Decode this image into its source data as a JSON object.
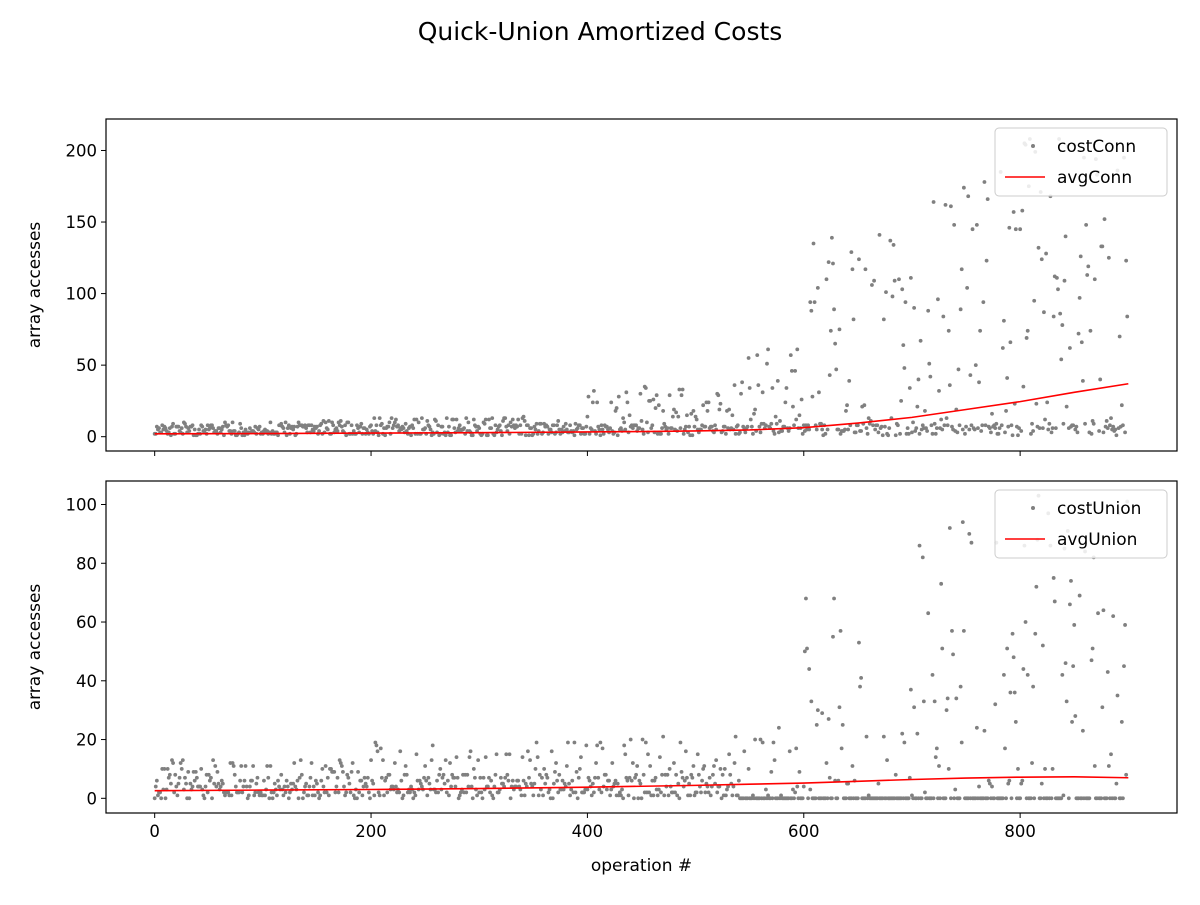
{
  "figure": {
    "title": "Quick-Union Amortized Costs"
  },
  "chart_data": [
    {
      "type": "scatter",
      "title": "",
      "xlabel": "",
      "ylabel": "array accesses",
      "xlim": [
        -45,
        945
      ],
      "ylim": [
        -10,
        222
      ],
      "xticks": [
        0,
        200,
        400,
        600,
        800
      ],
      "yticks": [
        0,
        50,
        100,
        150,
        200
      ],
      "show_x_tick_labels": false,
      "grid": false,
      "legend": {
        "placement": "upper right",
        "entries": [
          "costConn",
          "avgConn"
        ]
      },
      "scatter_series": {
        "name": "costConn",
        "color": "#808080",
        "n_points": 900,
        "approx_profile": [
          {
            "x_from": 0,
            "x_to": 200,
            "min": 1,
            "max": 11
          },
          {
            "x_from": 200,
            "x_to": 400,
            "min": 1,
            "max": 14
          },
          {
            "x_from": 400,
            "x_to": 540,
            "min": 1,
            "max": 36
          },
          {
            "x_from": 540,
            "x_to": 600,
            "min": 1,
            "max": 62
          },
          {
            "x_from": 600,
            "x_to": 700,
            "min": 1,
            "max": 156
          },
          {
            "x_from": 700,
            "x_to": 800,
            "min": 1,
            "max": 190
          },
          {
            "x_from": 800,
            "x_to": 900,
            "min": 1,
            "max": 212
          }
        ]
      },
      "line_series": {
        "name": "avgConn",
        "color": "#ff0000",
        "x": [
          0,
          100,
          200,
          300,
          400,
          450,
          500,
          550,
          600,
          650,
          700,
          750,
          800,
          850,
          900
        ],
        "y": [
          2,
          2.2,
          2.5,
          2.8,
          3.3,
          3.6,
          4.0,
          4.7,
          6.3,
          9.5,
          13.5,
          19.0,
          24.5,
          31.0,
          37.0
        ]
      }
    },
    {
      "type": "scatter",
      "title": "",
      "xlabel": "operation #",
      "ylabel": "array accesses",
      "xlim": [
        -45,
        945
      ],
      "ylim": [
        -5,
        108
      ],
      "xticks": [
        0,
        200,
        400,
        600,
        800
      ],
      "yticks": [
        0,
        20,
        40,
        60,
        80,
        100
      ],
      "show_x_tick_labels": true,
      "grid": false,
      "legend": {
        "placement": "upper right",
        "entries": [
          "costUnion",
          "avgUnion"
        ]
      },
      "scatter_series": {
        "name": "costUnion",
        "color": "#808080",
        "n_points": 900,
        "approx_profile": [
          {
            "x_from": 0,
            "x_to": 200,
            "min": 0,
            "max": 13
          },
          {
            "x_from": 200,
            "x_to": 400,
            "min": 0,
            "max": 19
          },
          {
            "x_from": 400,
            "x_to": 540,
            "min": 0,
            "max": 21
          },
          {
            "x_from": 540,
            "x_to": 600,
            "min": 0,
            "max": 31
          },
          {
            "x_from": 600,
            "x_to": 700,
            "min": 0,
            "max": 69
          },
          {
            "x_from": 700,
            "x_to": 800,
            "min": 0,
            "max": 95
          },
          {
            "x_from": 800,
            "x_to": 900,
            "min": 0,
            "max": 103
          }
        ]
      },
      "line_series": {
        "name": "avgUnion",
        "color": "#ff0000",
        "x": [
          0,
          100,
          200,
          300,
          400,
          500,
          550,
          600,
          650,
          700,
          750,
          800,
          850,
          900
        ],
        "y": [
          2.6,
          2.8,
          3.0,
          3.3,
          3.8,
          4.4,
          4.8,
          5.2,
          5.8,
          6.4,
          6.9,
          7.2,
          7.3,
          7.0
        ]
      }
    }
  ]
}
